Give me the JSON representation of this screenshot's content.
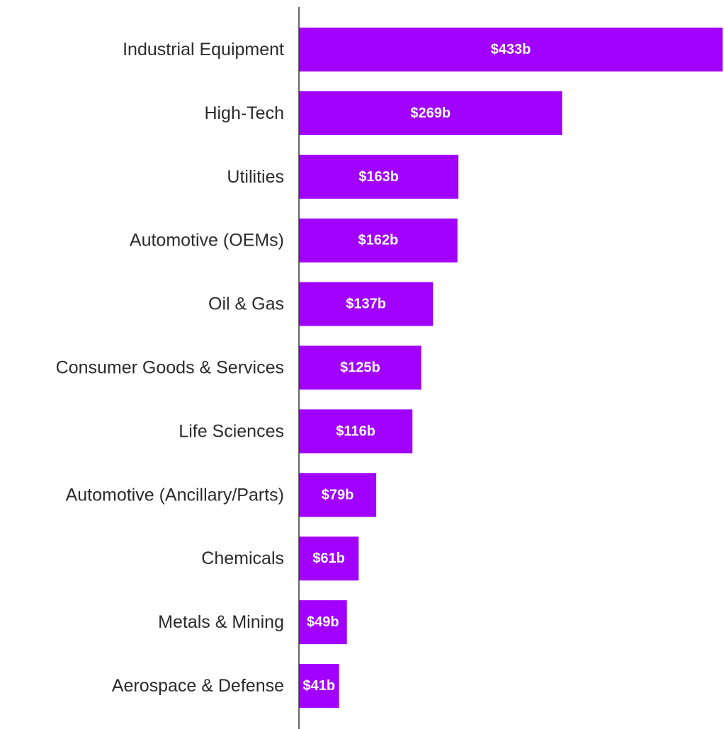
{
  "chart_data": {
    "type": "bar",
    "orientation": "horizontal",
    "categories": [
      "Industrial Equipment",
      "High-Tech",
      "Utilities",
      "Automotive (OEMs)",
      "Oil & Gas",
      "Consumer Goods & Services",
      "Life Sciences",
      "Automotive (Ancillary/Parts)",
      "Chemicals",
      "Metals & Mining",
      "Aerospace & Defense"
    ],
    "values": [
      433,
      269,
      163,
      162,
      137,
      125,
      116,
      79,
      61,
      49,
      41
    ],
    "data_labels": [
      "$433b",
      "$269b",
      "$163b",
      "$162b",
      "$137b",
      "$125b",
      "$116b",
      "$79b",
      "$61b",
      "$49b",
      "$41b"
    ],
    "unit": "$b",
    "title": "",
    "xlabel": "",
    "ylabel": "",
    "xlim": [
      0,
      433
    ],
    "grid": false,
    "legend": "none",
    "colors": {
      "bar": "#a100ff",
      "label_text": "#2b2b2b",
      "value_text": "#ffffff",
      "axis": "#333333"
    }
  }
}
